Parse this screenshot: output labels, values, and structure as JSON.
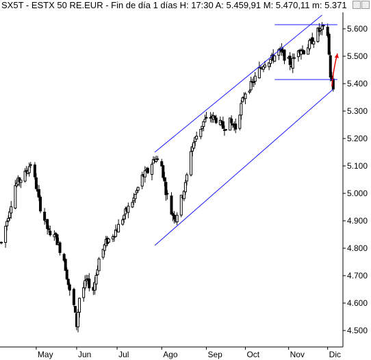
{
  "window": {
    "title": "SX5T - ESTX 50 RE.EUR - Fin de día 1 días H: 17:30 A: 5.459,91 M: 5.470,11 m: 5.371"
  },
  "colors": {
    "background": "#ffffff",
    "axis": "#000000",
    "candles": "#000000",
    "channel_lines": "#1a1aff",
    "arrow": "#e60000"
  },
  "chart_data": {
    "type": "ohlc",
    "xlabel": "",
    "ylabel": "",
    "ylim": [
      4440,
      5660
    ],
    "grid": false,
    "y_ticks": [
      "5.600",
      "5.500",
      "5.400",
      "5.300",
      "5.200",
      "5.100",
      "5.000",
      "4.900",
      "4.800",
      "4.700",
      "4.600",
      "4.500"
    ],
    "y_tick_values": [
      5600,
      5500,
      5400,
      5300,
      5200,
      5100,
      5000,
      4900,
      4800,
      4700,
      4600,
      4500
    ],
    "x_labels": [
      "May",
      "Jun",
      "Jul",
      "Ago",
      "Sep",
      "Oct",
      "Nov",
      "Dic"
    ],
    "x_label_dates": [
      "2024-04-30",
      "2024-05-29",
      "2024-06-27",
      "2024-07-29",
      "2024-08-30",
      "2024-09-27",
      "2024-10-28",
      "2024-11-25"
    ],
    "x_range": [
      "2024-04-05",
      "2024-12-04"
    ],
    "price_path": [
      [
        "2024-04-05",
        4820
      ],
      [
        "2024-04-09",
        4900
      ],
      [
        "2024-04-15",
        5030
      ],
      [
        "2024-04-22",
        5070
      ],
      [
        "2024-04-26",
        5110
      ],
      [
        "2024-04-29",
        5050
      ],
      [
        "2024-05-03",
        4950
      ],
      [
        "2024-05-07",
        4890
      ],
      [
        "2024-05-10",
        4840
      ],
      [
        "2024-05-13",
        4860
      ],
      [
        "2024-05-16",
        4810
      ],
      [
        "2024-05-20",
        4760
      ],
      [
        "2024-05-24",
        4640
      ],
      [
        "2024-05-27",
        4590
      ],
      [
        "2024-05-29",
        4520
      ],
      [
        "2024-05-31",
        4620
      ],
      [
        "2024-06-05",
        4680
      ],
      [
        "2024-06-10",
        4650
      ],
      [
        "2024-06-14",
        4760
      ],
      [
        "2024-06-19",
        4820
      ],
      [
        "2024-06-24",
        4850
      ],
      [
        "2024-06-28",
        4880
      ],
      [
        "2024-07-03",
        4930
      ],
      [
        "2024-07-09",
        4980
      ],
      [
        "2024-07-15",
        5060
      ],
      [
        "2024-07-19",
        5080
      ],
      [
        "2024-07-24",
        5130
      ],
      [
        "2024-07-29",
        5100
      ],
      [
        "2024-08-01",
        5010
      ],
      [
        "2024-08-05",
        4930
      ],
      [
        "2024-08-08",
        4910
      ],
      [
        "2024-08-12",
        4980
      ],
      [
        "2024-08-15",
        5030
      ],
      [
        "2024-08-19",
        5160
      ],
      [
        "2024-08-23",
        5210
      ],
      [
        "2024-08-28",
        5260
      ],
      [
        "2024-09-02",
        5280
      ],
      [
        "2024-09-06",
        5270
      ],
      [
        "2024-09-11",
        5240
      ],
      [
        "2024-09-16",
        5260
      ],
      [
        "2024-09-20",
        5240
      ],
      [
        "2024-09-24",
        5320
      ],
      [
        "2024-09-27",
        5370
      ],
      [
        "2024-10-02",
        5400
      ],
      [
        "2024-10-07",
        5450
      ],
      [
        "2024-10-11",
        5480
      ],
      [
        "2024-10-16",
        5490
      ],
      [
        "2024-10-21",
        5520
      ],
      [
        "2024-10-25",
        5500
      ],
      [
        "2024-10-30",
        5470
      ],
      [
        "2024-11-04",
        5530
      ],
      [
        "2024-11-08",
        5520
      ],
      [
        "2024-11-13",
        5550
      ],
      [
        "2024-11-18",
        5590
      ],
      [
        "2024-11-22",
        5600
      ],
      [
        "2024-11-25",
        5580
      ],
      [
        "2024-11-27",
        5430
      ],
      [
        "2024-11-29",
        5380
      ]
    ],
    "annotations": {
      "channel_upper": [
        [
          "2024-07-24",
          5150
        ],
        [
          "2024-11-21",
          5650
        ]
      ],
      "channel_lower": [
        [
          "2024-07-24",
          4810
        ],
        [
          "2024-11-29",
          5380
        ]
      ],
      "range_top": [
        [
          "2024-10-18",
          5615
        ],
        [
          "2024-12-02",
          5615
        ]
      ],
      "range_bottom": [
        [
          "2024-10-18",
          5415
        ],
        [
          "2024-12-02",
          5415
        ]
      ],
      "arrow": {
        "from": [
          "2024-11-28",
          5390
        ],
        "to": [
          "2024-12-02",
          5510
        ]
      }
    }
  }
}
